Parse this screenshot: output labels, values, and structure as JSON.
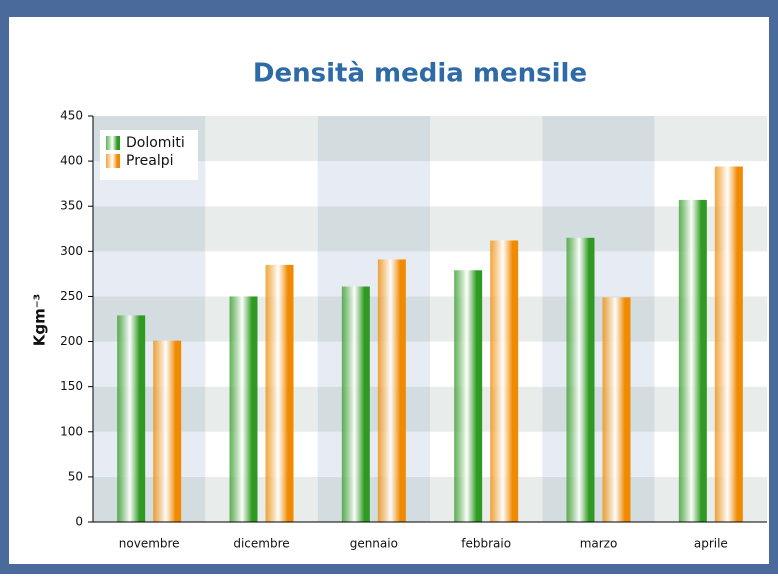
{
  "chart_data": {
    "type": "bar",
    "title": "Densità media mensile",
    "y_label": "Kgm⁻³",
    "categories": [
      "novembre",
      "dicembre",
      "gennaio",
      "febbraio",
      "marzo",
      "aprile"
    ],
    "series": [
      {
        "name": "Dolomiti",
        "color": "#2f9a22",
        "values": [
          229,
          250,
          261,
          279,
          315,
          357
        ]
      },
      {
        "name": "Prealpi",
        "color": "#f08a00",
        "values": [
          201,
          285,
          291,
          312,
          249,
          394
        ]
      }
    ],
    "ylim": [
      0,
      450
    ],
    "yticks": [
      0,
      50,
      100,
      150,
      200,
      250,
      300,
      350,
      400,
      450
    ],
    "grid": true,
    "legend": "top-left"
  }
}
